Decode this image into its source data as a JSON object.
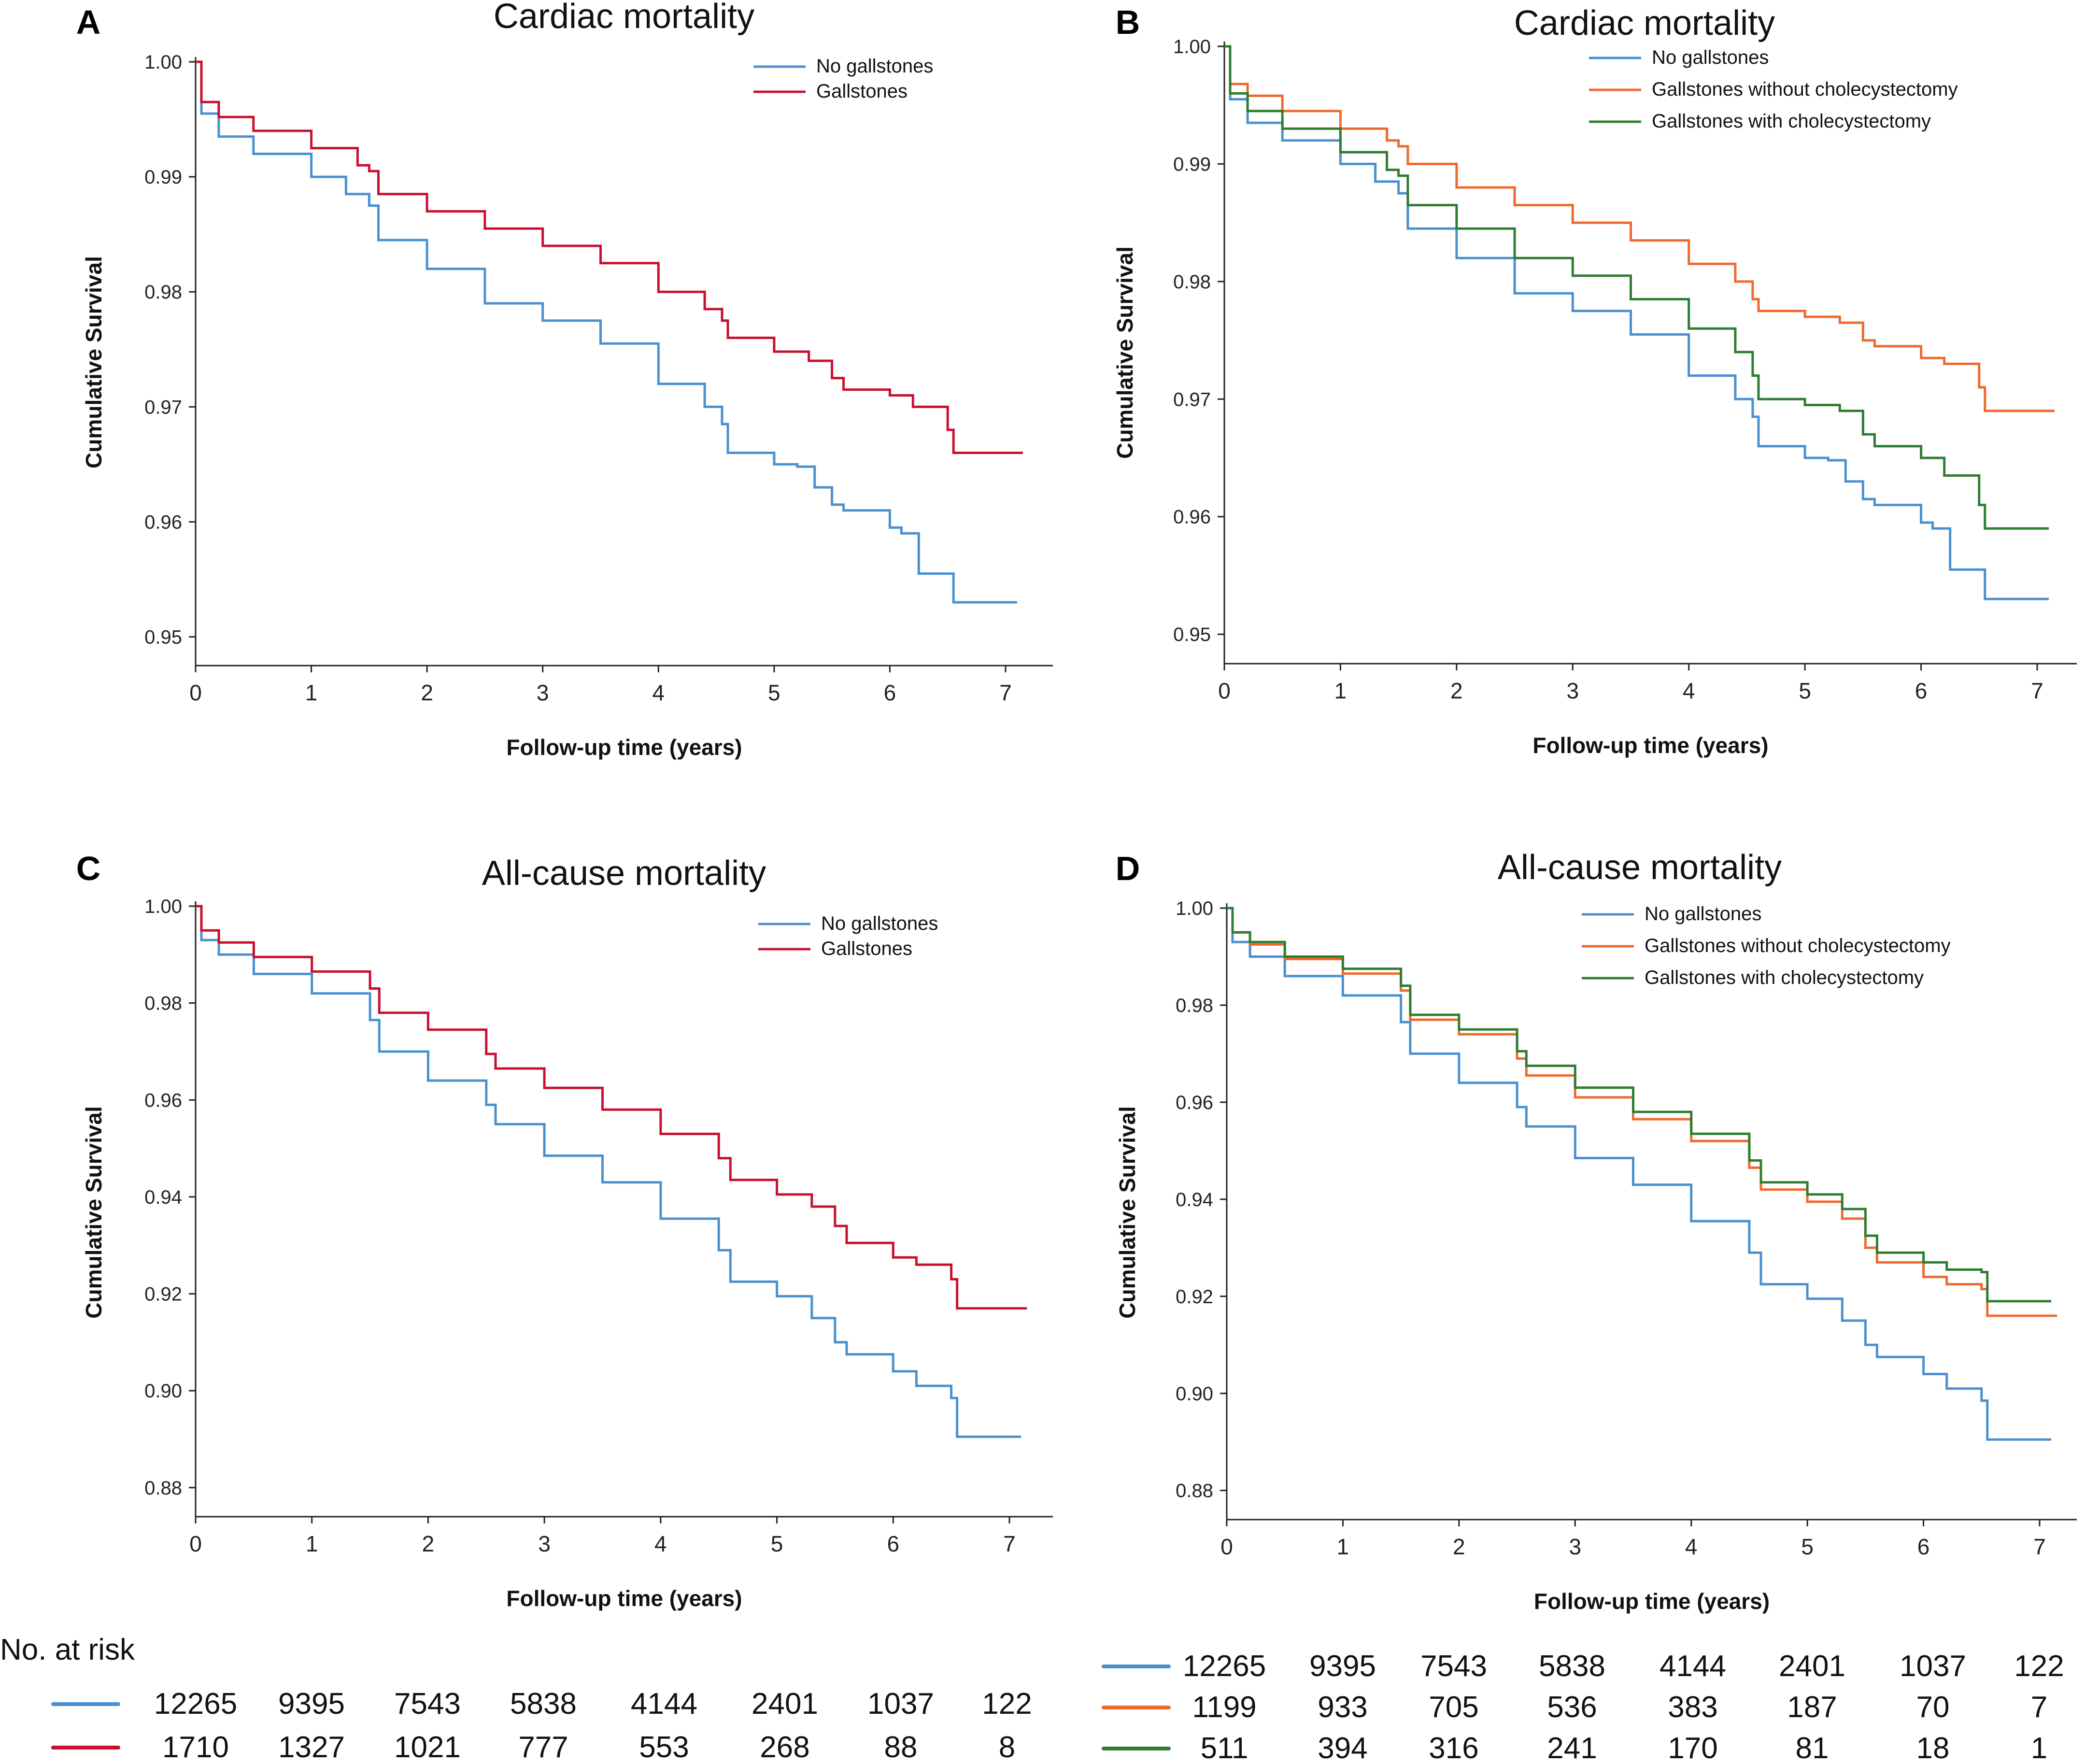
{
  "chart_data": [
    {
      "panel": "A",
      "type": "line",
      "title": "Cardiac mortality",
      "xlabel": "Follow-up time (years)",
      "ylabel": "Cumulative Survival",
      "xlim": [
        0,
        7.4
      ],
      "ylim": [
        0.9475,
        1.0
      ],
      "xticks": [
        0,
        1,
        2,
        3,
        4,
        5,
        6,
        7
      ],
      "yticks": [
        0.95,
        0.96,
        0.97,
        0.98,
        0.99,
        1.0
      ],
      "ytick_labels": [
        "0.95",
        "0.96",
        "0.97",
        "0.98",
        "0.99",
        "1.00"
      ],
      "legend": "top-right",
      "series": [
        {
          "name": "No gallstones",
          "color": "#4a90cf",
          "x": [
            0,
            0.05,
            0.2,
            0.5,
            1.0,
            1.3,
            1.5,
            1.58,
            2.0,
            2.5,
            3.0,
            3.5,
            4.0,
            4.4,
            4.55,
            4.6,
            5.0,
            5.2,
            5.35,
            5.5,
            5.6,
            6.0,
            6.1,
            6.25,
            6.5,
            6.55,
            7.1
          ],
          "y": [
            1.0,
            0.9955,
            0.9935,
            0.992,
            0.99,
            0.9885,
            0.9875,
            0.9845,
            0.982,
            0.979,
            0.9775,
            0.9755,
            0.972,
            0.97,
            0.9685,
            0.966,
            0.965,
            0.9648,
            0.963,
            0.9615,
            0.961,
            0.9595,
            0.959,
            0.9555,
            0.9555,
            0.953,
            0.953
          ]
        },
        {
          "name": "Gallstones",
          "color": "#c8102e",
          "x": [
            0,
            0.05,
            0.2,
            0.5,
            1.0,
            1.4,
            1.5,
            1.58,
            2.0,
            2.5,
            3.0,
            3.5,
            4.0,
            4.4,
            4.55,
            4.6,
            5.0,
            5.3,
            5.5,
            5.6,
            6.0,
            6.2,
            6.5,
            6.55,
            7.15
          ],
          "y": [
            1.0,
            0.9965,
            0.9952,
            0.994,
            0.9925,
            0.991,
            0.9905,
            0.9885,
            0.987,
            0.9855,
            0.984,
            0.9825,
            0.98,
            0.9785,
            0.9775,
            0.976,
            0.9748,
            0.974,
            0.9725,
            0.9715,
            0.971,
            0.97,
            0.968,
            0.966,
            0.966
          ]
        }
      ]
    },
    {
      "panel": "B",
      "type": "line",
      "title": "Cardiac mortality",
      "xlabel": "Follow-up time (years)",
      "ylabel": "Cumulative Survival",
      "xlim": [
        0,
        7.4
      ],
      "ylim": [
        0.9475,
        1.0
      ],
      "xticks": [
        0,
        1,
        2,
        3,
        4,
        5,
        6,
        7
      ],
      "yticks": [
        0.95,
        0.96,
        0.97,
        0.98,
        0.99,
        1.0
      ],
      "ytick_labels": [
        "0.95",
        "0.96",
        "0.97",
        "0.98",
        "0.99",
        "1.00"
      ],
      "legend": "top-right",
      "series": [
        {
          "name": "No gallstones",
          "color": "#4a90cf",
          "x": [
            0,
            0.05,
            0.2,
            0.5,
            1.0,
            1.3,
            1.5,
            1.58,
            2.0,
            2.5,
            3.0,
            3.5,
            4.0,
            4.4,
            4.55,
            4.6,
            5.0,
            5.2,
            5.35,
            5.5,
            5.6,
            6.0,
            6.1,
            6.25,
            6.5,
            6.55,
            7.1
          ],
          "y": [
            1.0,
            0.9955,
            0.9935,
            0.992,
            0.99,
            0.9885,
            0.9875,
            0.9845,
            0.982,
            0.979,
            0.9775,
            0.9755,
            0.972,
            0.97,
            0.9685,
            0.966,
            0.965,
            0.9648,
            0.963,
            0.9615,
            0.961,
            0.9595,
            0.959,
            0.9555,
            0.9555,
            0.953,
            0.953
          ]
        },
        {
          "name": "Gallstones without cholecystectomy",
          "color": "#ee6a2c",
          "x": [
            0,
            0.05,
            0.2,
            0.5,
            1.0,
            1.4,
            1.5,
            1.58,
            2.0,
            2.5,
            3.0,
            3.5,
            4.0,
            4.4,
            4.55,
            4.6,
            5.0,
            5.3,
            5.5,
            5.6,
            6.0,
            6.2,
            6.5,
            6.55,
            7.15
          ],
          "y": [
            1.0,
            0.9968,
            0.9958,
            0.9945,
            0.993,
            0.992,
            0.9915,
            0.99,
            0.988,
            0.9865,
            0.985,
            0.9835,
            0.9815,
            0.98,
            0.9785,
            0.9775,
            0.977,
            0.9765,
            0.975,
            0.9745,
            0.9735,
            0.973,
            0.971,
            0.969,
            0.969
          ]
        },
        {
          "name": "Gallstones with cholecystectomy",
          "color": "#2e7d32",
          "x": [
            0,
            0.05,
            0.2,
            0.5,
            1.0,
            1.4,
            1.5,
            1.58,
            2.0,
            2.5,
            3.0,
            3.5,
            4.0,
            4.4,
            4.55,
            4.6,
            5.0,
            5.3,
            5.5,
            5.6,
            6.0,
            6.2,
            6.5,
            6.55,
            7.1
          ],
          "y": [
            1.0,
            0.996,
            0.9945,
            0.993,
            0.991,
            0.9895,
            0.989,
            0.9865,
            0.9845,
            0.982,
            0.9805,
            0.9785,
            0.976,
            0.974,
            0.972,
            0.97,
            0.9695,
            0.969,
            0.967,
            0.966,
            0.965,
            0.9635,
            0.961,
            0.959,
            0.959
          ]
        }
      ]
    },
    {
      "panel": "C",
      "type": "line",
      "title": "All-cause mortality",
      "xlabel": "Follow-up time (years)",
      "ylabel": "Cumulative Survival",
      "xlim": [
        0,
        7.4
      ],
      "ylim": [
        0.874,
        1.0
      ],
      "xticks": [
        0,
        1,
        2,
        3,
        4,
        5,
        6,
        7
      ],
      "yticks": [
        0.88,
        0.9,
        0.92,
        0.94,
        0.96,
        0.98,
        1.0
      ],
      "ytick_labels": [
        "0.88",
        "0.90",
        "0.92",
        "0.94",
        "0.96",
        "0.98",
        "1.00"
      ],
      "legend": "top-right",
      "series": [
        {
          "name": "No gallstones",
          "color": "#4a90cf",
          "x": [
            0,
            0.05,
            0.2,
            0.5,
            1.0,
            1.5,
            1.58,
            2.0,
            2.5,
            2.58,
            3.0,
            3.5,
            4.0,
            4.5,
            4.6,
            5.0,
            5.3,
            5.5,
            5.6,
            6.0,
            6.2,
            6.5,
            6.55,
            7.1
          ],
          "y": [
            1.0,
            0.993,
            0.99,
            0.986,
            0.982,
            0.9765,
            0.97,
            0.964,
            0.959,
            0.955,
            0.9485,
            0.943,
            0.9355,
            0.929,
            0.9225,
            0.9195,
            0.915,
            0.91,
            0.9075,
            0.904,
            0.901,
            0.8985,
            0.8905,
            0.8905
          ]
        },
        {
          "name": "Gallstones",
          "color": "#c8102e",
          "x": [
            0,
            0.05,
            0.2,
            0.5,
            1.0,
            1.5,
            1.58,
            2.0,
            2.5,
            2.58,
            3.0,
            3.5,
            4.0,
            4.5,
            4.6,
            5.0,
            5.3,
            5.5,
            5.6,
            6.0,
            6.2,
            6.5,
            6.55,
            7.15
          ],
          "y": [
            1.0,
            0.995,
            0.9925,
            0.9895,
            0.9865,
            0.983,
            0.978,
            0.9745,
            0.9695,
            0.9665,
            0.9625,
            0.958,
            0.953,
            0.948,
            0.9435,
            0.9405,
            0.938,
            0.934,
            0.9305,
            0.9275,
            0.926,
            0.923,
            0.917,
            0.917
          ]
        }
      ]
    },
    {
      "panel": "D",
      "type": "line",
      "title": "All-cause mortality",
      "xlabel": "Follow-up time (years)",
      "ylabel": "Cumulative Survival",
      "xlim": [
        0,
        7.4
      ],
      "ylim": [
        0.874,
        1.0
      ],
      "xticks": [
        0,
        1,
        2,
        3,
        4,
        5,
        6,
        7
      ],
      "yticks": [
        0.88,
        0.9,
        0.92,
        0.94,
        0.96,
        0.98,
        1.0
      ],
      "ytick_labels": [
        "0.88",
        "0.90",
        "0.92",
        "0.94",
        "0.96",
        "0.98",
        "1.00"
      ],
      "legend": "top-right",
      "series": [
        {
          "name": "No gallstones",
          "color": "#4a90cf",
          "x": [
            0,
            0.05,
            0.2,
            0.5,
            1.0,
            1.5,
            1.58,
            2.0,
            2.5,
            2.58,
            3.0,
            3.5,
            4.0,
            4.5,
            4.6,
            5.0,
            5.3,
            5.5,
            5.6,
            6.0,
            6.2,
            6.5,
            6.55,
            7.1
          ],
          "y": [
            1.0,
            0.993,
            0.99,
            0.986,
            0.982,
            0.9765,
            0.97,
            0.964,
            0.959,
            0.955,
            0.9485,
            0.943,
            0.9355,
            0.929,
            0.9225,
            0.9195,
            0.915,
            0.91,
            0.9075,
            0.904,
            0.901,
            0.8985,
            0.8905,
            0.8905
          ]
        },
        {
          "name": "Gallstones without cholecystectomy",
          "color": "#ee6a2c",
          "x": [
            0,
            0.05,
            0.2,
            0.5,
            1.0,
            1.5,
            1.58,
            2.0,
            2.5,
            2.58,
            3.0,
            3.5,
            4.0,
            4.5,
            4.6,
            5.0,
            5.3,
            5.5,
            5.6,
            6.0,
            6.2,
            6.5,
            6.55,
            7.15
          ],
          "y": [
            1.0,
            0.995,
            0.9925,
            0.9895,
            0.9865,
            0.983,
            0.977,
            0.974,
            0.969,
            0.9655,
            0.961,
            0.9565,
            0.952,
            0.9465,
            0.942,
            0.9395,
            0.936,
            0.93,
            0.927,
            0.924,
            0.9225,
            0.9215,
            0.916,
            0.916
          ]
        },
        {
          "name": "Gallstones with cholecystectomy",
          "color": "#2e7d32",
          "x": [
            0,
            0.05,
            0.2,
            0.5,
            1.0,
            1.5,
            1.58,
            2.0,
            2.5,
            2.58,
            3.0,
            3.5,
            4.0,
            4.5,
            4.6,
            5.0,
            5.3,
            5.5,
            5.6,
            6.0,
            6.2,
            6.5,
            6.55,
            7.1
          ],
          "y": [
            1.0,
            0.995,
            0.993,
            0.99,
            0.9875,
            0.984,
            0.978,
            0.975,
            0.9705,
            0.9675,
            0.963,
            0.958,
            0.9535,
            0.948,
            0.9435,
            0.941,
            0.938,
            0.9325,
            0.929,
            0.927,
            0.9255,
            0.925,
            0.919,
            0.919
          ]
        }
      ]
    }
  ],
  "panel_letters": [
    "A",
    "B",
    "C",
    "D"
  ],
  "at_risk": {
    "title": "No. at risk",
    "left": {
      "rows": [
        {
          "color": "#4a90cf",
          "values": [
            "12265",
            "9395",
            "7543",
            "5838",
            "4144",
            "2401",
            "1037",
            "122"
          ]
        },
        {
          "color": "#c8102e",
          "values": [
            "1710",
            "1327",
            "1021",
            "777",
            "553",
            "268",
            "88",
            "8"
          ]
        }
      ]
    },
    "right": {
      "rows": [
        {
          "color": "#4a90cf",
          "values": [
            "12265",
            "9395",
            "7543",
            "5838",
            "4144",
            "2401",
            "1037",
            "122"
          ]
        },
        {
          "color": "#ee6a2c",
          "values": [
            "1199",
            "933",
            "705",
            "536",
            "383",
            "187",
            "70",
            "7"
          ]
        },
        {
          "color": "#2e7d32",
          "values": [
            "511",
            "394",
            "316",
            "241",
            "170",
            "81",
            "18",
            "1"
          ]
        }
      ]
    }
  }
}
